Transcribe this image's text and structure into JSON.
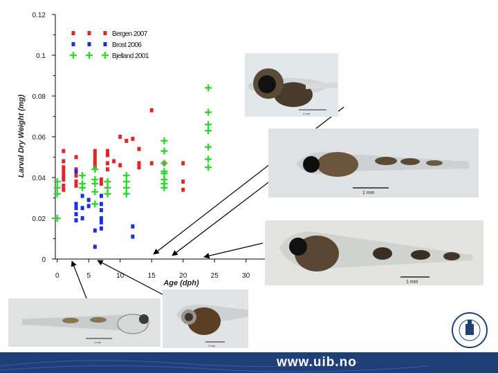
{
  "chart_data": {
    "type": "scatter",
    "title": "",
    "xlabel": "Age (dph)",
    "ylabel": "Larval Dry Weight (mg)",
    "xlim": [
      -0.3,
      33
    ],
    "ylim": [
      0,
      0.12
    ],
    "x_ticks": [
      0,
      5,
      10,
      15,
      20,
      25,
      30
    ],
    "y_ticks": [
      0,
      0.02,
      0.04,
      0.06,
      0.08,
      0.1,
      0.12
    ],
    "x_tick_labels": [
      "0",
      "5",
      "10",
      "15",
      "20",
      "25",
      "30"
    ],
    "y_tick_labels": [
      "0",
      "0.02",
      "0.04",
      "0.06",
      "0.08",
      "0.1",
      "0.12"
    ],
    "legend_position": "top-center",
    "series": [
      {
        "name": "Bergen 2007",
        "marker": "square",
        "color": "#e0262a",
        "points": [
          [
            1,
            0.053
          ],
          [
            1,
            0.048
          ],
          [
            1,
            0.045
          ],
          [
            1,
            0.043
          ],
          [
            1,
            0.041
          ],
          [
            1,
            0.039
          ],
          [
            1,
            0.036
          ],
          [
            1,
            0.034
          ],
          [
            3,
            0.05
          ],
          [
            3,
            0.044
          ],
          [
            3,
            0.041
          ],
          [
            3,
            0.038
          ],
          [
            3,
            0.036
          ],
          [
            6,
            0.053
          ],
          [
            6,
            0.051
          ],
          [
            6,
            0.049
          ],
          [
            6,
            0.047
          ],
          [
            6,
            0.045
          ],
          [
            7,
            0.039
          ],
          [
            7,
            0.037
          ],
          [
            8,
            0.053
          ],
          [
            8,
            0.051
          ],
          [
            8,
            0.047
          ],
          [
            8,
            0.044
          ],
          [
            9,
            0.048
          ],
          [
            10,
            0.06
          ],
          [
            10,
            0.046
          ],
          [
            11,
            0.058
          ],
          [
            12,
            0.059
          ],
          [
            13,
            0.054
          ],
          [
            13,
            0.047
          ],
          [
            13,
            0.045
          ],
          [
            15,
            0.073
          ],
          [
            15,
            0.047
          ],
          [
            17,
            0.047
          ],
          [
            20,
            0.047
          ],
          [
            20,
            0.038
          ],
          [
            20,
            0.034
          ]
        ]
      },
      {
        "name": "Brost 2006",
        "marker": "square",
        "color": "#1e2fd8",
        "points": [
          [
            3,
            0.043
          ],
          [
            3,
            0.027
          ],
          [
            3,
            0.025
          ],
          [
            3,
            0.022
          ],
          [
            3,
            0.019
          ],
          [
            4,
            0.031
          ],
          [
            4,
            0.025
          ],
          [
            4,
            0.02
          ],
          [
            5,
            0.029
          ],
          [
            5,
            0.026
          ],
          [
            6,
            0.014
          ],
          [
            6,
            0.006
          ],
          [
            7,
            0.031
          ],
          [
            7,
            0.027
          ],
          [
            7,
            0.024
          ],
          [
            7,
            0.02
          ],
          [
            7,
            0.018
          ],
          [
            7,
            0.015
          ],
          [
            12,
            0.016
          ],
          [
            12,
            0.011
          ]
        ]
      },
      {
        "name": "Bjelland 2001",
        "marker": "plus",
        "color": "#2ed62e",
        "points": [
          [
            0,
            0.038
          ],
          [
            0,
            0.035
          ],
          [
            0,
            0.032
          ],
          [
            0,
            0.02
          ],
          [
            4,
            0.041
          ],
          [
            4,
            0.037
          ],
          [
            4,
            0.035
          ],
          [
            6,
            0.044
          ],
          [
            6,
            0.039
          ],
          [
            6,
            0.037
          ],
          [
            6,
            0.033
          ],
          [
            6,
            0.027
          ],
          [
            8,
            0.038
          ],
          [
            8,
            0.035
          ],
          [
            8,
            0.032
          ],
          [
            11,
            0.041
          ],
          [
            11,
            0.038
          ],
          [
            11,
            0.035
          ],
          [
            11,
            0.032
          ],
          [
            17,
            0.058
          ],
          [
            17,
            0.053
          ],
          [
            17,
            0.047
          ],
          [
            17,
            0.042
          ],
          [
            17,
            0.039
          ],
          [
            17,
            0.037
          ],
          [
            17,
            0.035
          ],
          [
            17,
            0.043
          ],
          [
            24,
            0.084
          ],
          [
            24,
            0.072
          ],
          [
            24,
            0.066
          ],
          [
            24,
            0.063
          ],
          [
            24,
            0.055
          ],
          [
            24,
            0.049
          ],
          [
            24,
            0.045
          ]
        ]
      }
    ]
  },
  "photos": {
    "large_scale_label": "1 mm",
    "small_scale_label": "1 mm"
  },
  "footer": {
    "url": "www.uib.no",
    "seal_text": "UNIVERSITAS BERGENSIS"
  }
}
